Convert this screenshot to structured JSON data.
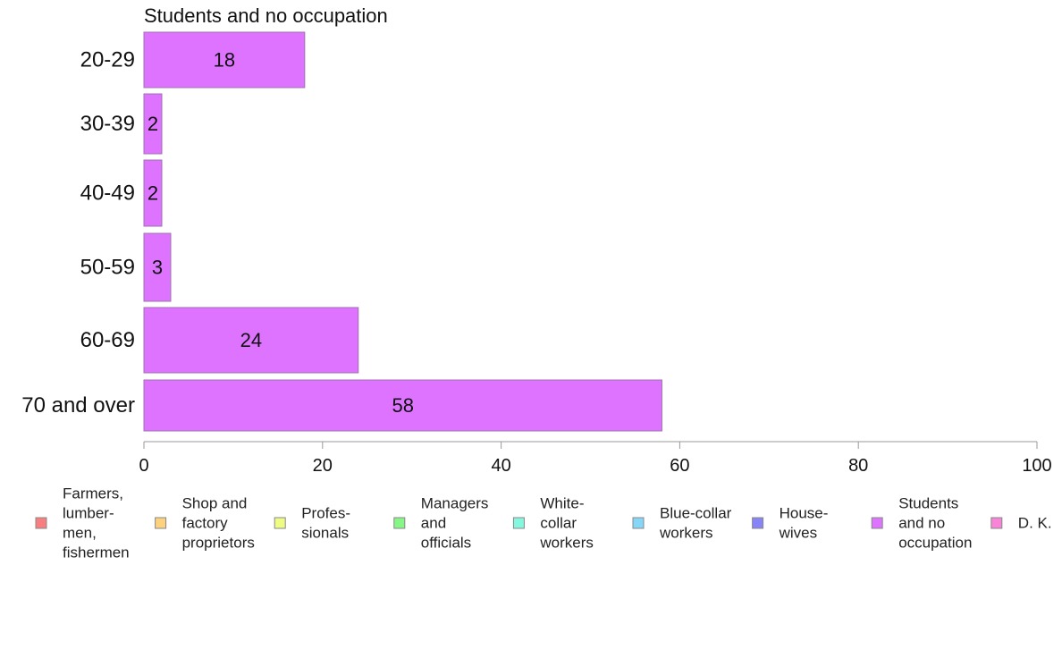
{
  "chart_data": {
    "type": "bar",
    "orientation": "horizontal",
    "title": "Students and no occupation",
    "categories": [
      "20-29",
      "30-39",
      "40-49",
      "50-59",
      "60-69",
      "70 and over"
    ],
    "values": [
      18,
      2,
      2,
      3,
      24,
      58
    ],
    "value_labels": [
      "18",
      "2",
      "2",
      "3",
      "24",
      "58"
    ],
    "bar_color": "#dd73ff",
    "xlim": [
      0,
      100
    ],
    "xticks": [
      0,
      20,
      40,
      60,
      80,
      100
    ],
    "grid": false,
    "legend_placement": "bottom",
    "legend": [
      {
        "label": "Farmers, lumber- men, fishermen",
        "lines": [
          "Farmers,",
          "lumber-",
          "men,",
          "fishermen"
        ],
        "color": "#f87f7f"
      },
      {
        "label": "Shop and factory proprietors",
        "lines": [
          "Shop and",
          "factory",
          "proprietors"
        ],
        "color": "#fcd27e"
      },
      {
        "label": "Profes- sionals",
        "lines": [
          "Profes-",
          "sionals"
        ],
        "color": "#eefc86"
      },
      {
        "label": "Managers and officials",
        "lines": [
          "Managers",
          "and",
          "officials"
        ],
        "color": "#86f786"
      },
      {
        "label": "White- collar workers",
        "lines": [
          "White-",
          "collar",
          "workers"
        ],
        "color": "#86f7df"
      },
      {
        "label": "Blue-collar workers",
        "lines": [
          "Blue-collar",
          "workers"
        ],
        "color": "#86d7f7"
      },
      {
        "label": "House- wives",
        "lines": [
          "House-",
          "wives"
        ],
        "color": "#8684f7"
      },
      {
        "label": "Students and no occupation",
        "lines": [
          "Students",
          "and no",
          "occupation"
        ],
        "color": "#dd73ff"
      },
      {
        "label": "D. K.",
        "lines": [
          "D. K."
        ],
        "color": "#f784d7"
      }
    ]
  }
}
